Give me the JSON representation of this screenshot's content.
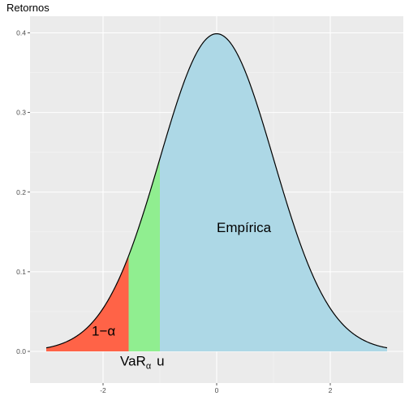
{
  "chart_data": {
    "type": "area",
    "title": "Retornos",
    "xlabel": "",
    "ylabel": "",
    "xlim": [
      -3,
      3
    ],
    "ylim": [
      0,
      0.4
    ],
    "x_ticks": [
      -2,
      0,
      2
    ],
    "x_tick_labels": [
      "-2",
      "0",
      "2"
    ],
    "y_ticks": [
      0.0,
      0.1,
      0.2,
      0.3,
      0.4
    ],
    "y_tick_labels": [
      "0.0",
      "0.1",
      "0.2",
      "0.3",
      "0.4"
    ],
    "grid": true,
    "curve": "standard normal density",
    "regions": [
      {
        "label": "1−α",
        "x_from": -3,
        "x_to": -1.55,
        "color": "#ff6347"
      },
      {
        "label": "",
        "x_from": -1.55,
        "x_to": -1.0,
        "color": "#90ee90"
      },
      {
        "label": "Empírica",
        "x_from": -1.0,
        "x_to": 3,
        "color": "#add8e6"
      }
    ],
    "annotations": [
      {
        "text": "1−α",
        "x": -2.2,
        "y": 0.02
      },
      {
        "text": "Empírica",
        "x": 0.0,
        "y": 0.15
      },
      {
        "text": "VaR",
        "subscript": "α",
        "suffix": "u",
        "x": -1.7,
        "y": -0.018
      }
    ],
    "colors": {
      "panel": "#ebebeb",
      "grid_major": "#ffffff",
      "curve": "#000000"
    }
  }
}
